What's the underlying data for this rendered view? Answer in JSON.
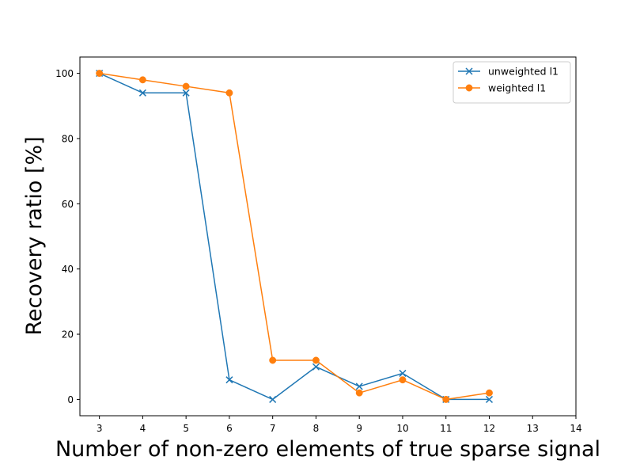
{
  "chart_data": {
    "type": "line",
    "xlabel": "Number of non-zero elements of true sparse signal",
    "ylabel": "Recovery ratio [%]",
    "xlim": [
      2.55,
      14
    ],
    "ylim": [
      -5,
      105
    ],
    "xticks": [
      3,
      4,
      5,
      6,
      7,
      8,
      9,
      10,
      11,
      12,
      13,
      14
    ],
    "yticks": [
      0,
      20,
      40,
      60,
      80,
      100
    ],
    "grid": false,
    "legend_position": "top-right",
    "x": [
      3,
      4,
      5,
      6,
      7,
      8,
      9,
      10,
      11,
      12
    ],
    "series": [
      {
        "name": "unweighted l1",
        "color": "#1f77b4",
        "marker": "x",
        "values": [
          100,
          94,
          94,
          6,
          0,
          10,
          4,
          8,
          0,
          0
        ]
      },
      {
        "name": "weighted l1",
        "color": "#ff7f0e",
        "marker": "o",
        "values": [
          100,
          98,
          96,
          94,
          12,
          12,
          2,
          6,
          0,
          2
        ]
      }
    ]
  }
}
